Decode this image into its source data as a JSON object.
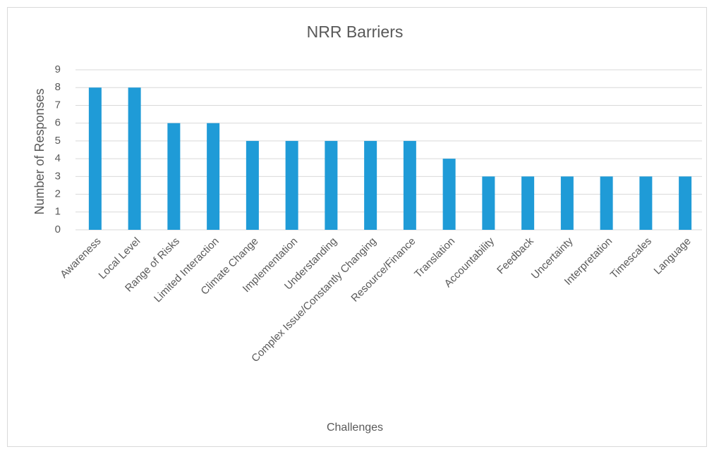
{
  "chart_data": {
    "type": "bar",
    "title": "NRR Barriers",
    "x_label": "Challenges",
    "y_label": "Number of Responses",
    "categories": [
      "Awareness",
      "Local Level",
      "Range of Risks",
      "Limited Interaction",
      "Climate Change",
      "Implementation",
      "Understanding",
      "Complex Issue/Constantly Changing",
      "Resource/Finance",
      "Translation",
      "Accountability",
      "Feedback",
      "Uncertainty",
      "Interpretation",
      "Timescales",
      "Language"
    ],
    "values": [
      8,
      8,
      6,
      6,
      5,
      5,
      5,
      5,
      5,
      4,
      3,
      3,
      3,
      3,
      3,
      3
    ],
    "color": "#1f9bd7",
    "ylim": [
      0,
      9
    ],
    "yticks": [
      0,
      1,
      2,
      3,
      4,
      5,
      6,
      7,
      8,
      9
    ],
    "grid": true
  }
}
